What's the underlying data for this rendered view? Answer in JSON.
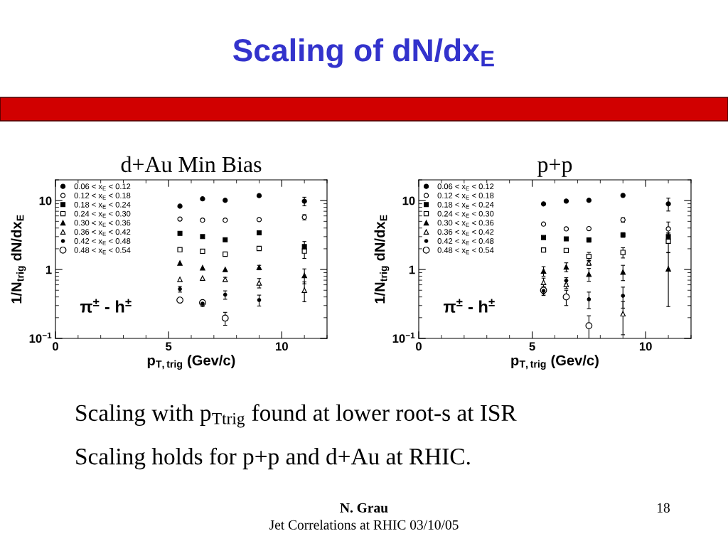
{
  "chart_data": [
    {
      "type": "scatter",
      "title": "d+Au Min Bias",
      "xlabel": "p$_{T,trig}$ (Gev/c)",
      "ylabel": "1/N$_{trig}$ dN/dx$_{E}$",
      "log": "y",
      "x": [
        5.5,
        6.5,
        7.5,
        9,
        11
      ],
      "xlim": [
        0,
        12
      ],
      "xticks": [
        0,
        5,
        10
      ],
      "ylim": [
        0.1,
        20
      ],
      "yticks": [
        {
          "value": 0.1,
          "label": "10$^{−1}$"
        },
        1,
        10
      ],
      "legend": "top left",
      "annotations": [
        "π$^{±}$ - h$^{±}$"
      ],
      "series": [
        {
          "name": "0.06 < x$_{E}$ < 0.12",
          "color": "#000000",
          "marker": "circle",
          "values": [
            8.3,
            10.6,
            10.1,
            11.8,
            9.8
          ],
          "errors": [
            null,
            null,
            null,
            null,
            1.4
          ]
        },
        {
          "name": "0.12 < x$_{E}$ < 0.18",
          "color": "#000000",
          "marker": "circle",
          "values": [
            5.4,
            5.2,
            5.2,
            5.3,
            5.75
          ],
          "errors": [
            null,
            null,
            null,
            null,
            0.5
          ]
        },
        {
          "name": "0.18 < x$_{E}$ < 0.24",
          "color": "#000000",
          "marker": "square",
          "values": [
            3.34,
            3.0,
            2.7,
            3.4,
            2.15
          ],
          "errors": [
            null,
            null,
            null,
            null,
            0.4
          ]
        },
        {
          "name": "0.24 < x$_{E}$ < 0.30",
          "color": "#000000",
          "marker": "square",
          "values": [
            1.94,
            1.84,
            1.67,
            2.02,
            1.85
          ],
          "errors": [
            null,
            null,
            null,
            null,
            0.4
          ]
        },
        {
          "name": "0.30 < x$_{E}$ < 0.36",
          "color": "#000000",
          "marker": "triangle",
          "values": [
            1.24,
            1.06,
            1.0,
            1.07,
            0.82
          ],
          "errors": [
            null,
            null,
            null,
            0.08,
            0.2
          ]
        },
        {
          "name": "0.36 < x$_{E}$ < 0.42",
          "color": "#000000",
          "marker": "triangle",
          "values": [
            0.72,
            0.75,
            0.72,
            0.64,
            0.5
          ],
          "errors": [
            null,
            null,
            0.05,
            0.1,
            0.16
          ]
        },
        {
          "name": "0.42 < x$_{E}$ < 0.48",
          "color": "#000000",
          "marker": "circle",
          "values": [
            0.52,
            0.32,
            0.43,
            0.36,
            null
          ],
          "errors": [
            0.05,
            0.03,
            0.06,
            0.065,
            null
          ]
        },
        {
          "name": "0.48 < x$_{E}$ < 0.54",
          "color": "#000000",
          "marker": "circle",
          "values": [
            0.36,
            0.33,
            0.197,
            null,
            null
          ],
          "errors": [
            0.03,
            0.02,
            0.042,
            null,
            null
          ]
        }
      ]
    },
    {
      "type": "scatter",
      "title": "p+p",
      "xlabel": "p$_{T,trig}$ (Gev/c)",
      "ylabel": "1/N$_{trig}$ dN/dx$_{E}$",
      "log": "y",
      "x": [
        5.5,
        6.5,
        7.5,
        9,
        11
      ],
      "xlim": [
        0,
        12
      ],
      "xticks": [
        0,
        5,
        10
      ],
      "ylim": [
        0.1,
        20
      ],
      "yticks": [
        {
          "value": 0.1,
          "label": "10$^{−1}$"
        },
        1,
        10
      ],
      "legend": "top left",
      "annotations": [
        "π$^{±}$ - h$^{±}$"
      ],
      "series": [
        {
          "name": "0.06 < x$_{E}$ < 0.12",
          "color": "#000000",
          "marker": "circle",
          "values": [
            8.96,
            9.85,
            10.1,
            11.9,
            8.96
          ],
          "errors": [
            null,
            null,
            null,
            null,
            1.9
          ]
        },
        {
          "name": "0.12 < x$_{E}$ < 0.18",
          "color": "#000000",
          "marker": "circle",
          "values": [
            4.56,
            3.89,
            3.92,
            5.25,
            3.89
          ],
          "errors": [
            null,
            null,
            null,
            0.4,
            1.0
          ]
        },
        {
          "name": "0.18 < x$_{E}$ < 0.24",
          "color": "#000000",
          "marker": "square",
          "values": [
            2.91,
            2.78,
            2.69,
            3.18,
            3.0
          ],
          "errors": [
            null,
            null,
            0.2,
            0.25,
            0.4
          ]
        },
        {
          "name": "0.24 < x$_{E}$ < 0.30",
          "color": "#000000",
          "marker": "square",
          "values": [
            1.92,
            1.89,
            1.55,
            1.77,
            2.57
          ],
          "errors": [
            null,
            null,
            0.22,
            0.3,
            0.8
          ]
        },
        {
          "name": "0.30 < x$_{E}$ < 0.36",
          "color": "#000000",
          "marker": "triangle",
          "values": [
            0.95,
            1.09,
            0.855,
            0.92,
            1.02
          ],
          "errors": [
            0.15,
            0.16,
            0.18,
            0.23,
            0.73
          ]
        },
        {
          "name": "0.36 < x$_{E}$ < 0.42",
          "color": "#000000",
          "marker": "triangle",
          "values": [
            0.65,
            0.61,
            1.25,
            0.228,
            null
          ],
          "errors": [
            0.1,
            0.08,
            0.1,
            0.115,
            null
          ]
        },
        {
          "name": "0.42 < x$_{E}$ < 0.48",
          "color": "#000000",
          "marker": "circle",
          "values": [
            0.49,
            0.69,
            0.37,
            0.415,
            null
          ],
          "errors": [
            0.07,
            0.07,
            0.1,
            0.14,
            null
          ]
        },
        {
          "name": "0.48 < x$_{E}$ < 0.54",
          "color": "#000000",
          "marker": "circle",
          "values": [
            0.5,
            0.4,
            0.153,
            null,
            null
          ],
          "errors": [
            0.06,
            0.1,
            0.06,
            null,
            null
          ]
        }
      ]
    },
    {
      "type": "other",
      "title": "Scaling of dN/dx$_{E}$",
      "annotations": [
        "Scaling with p$_{Ttrig}$ found at lower root-s at ISR",
        "Scaling holds for p+p and d+Au at RHIC.",
        "N. Grau",
        "Jet Correlations at RHIC 03/10/05",
        "18"
      ]
    }
  ]
}
